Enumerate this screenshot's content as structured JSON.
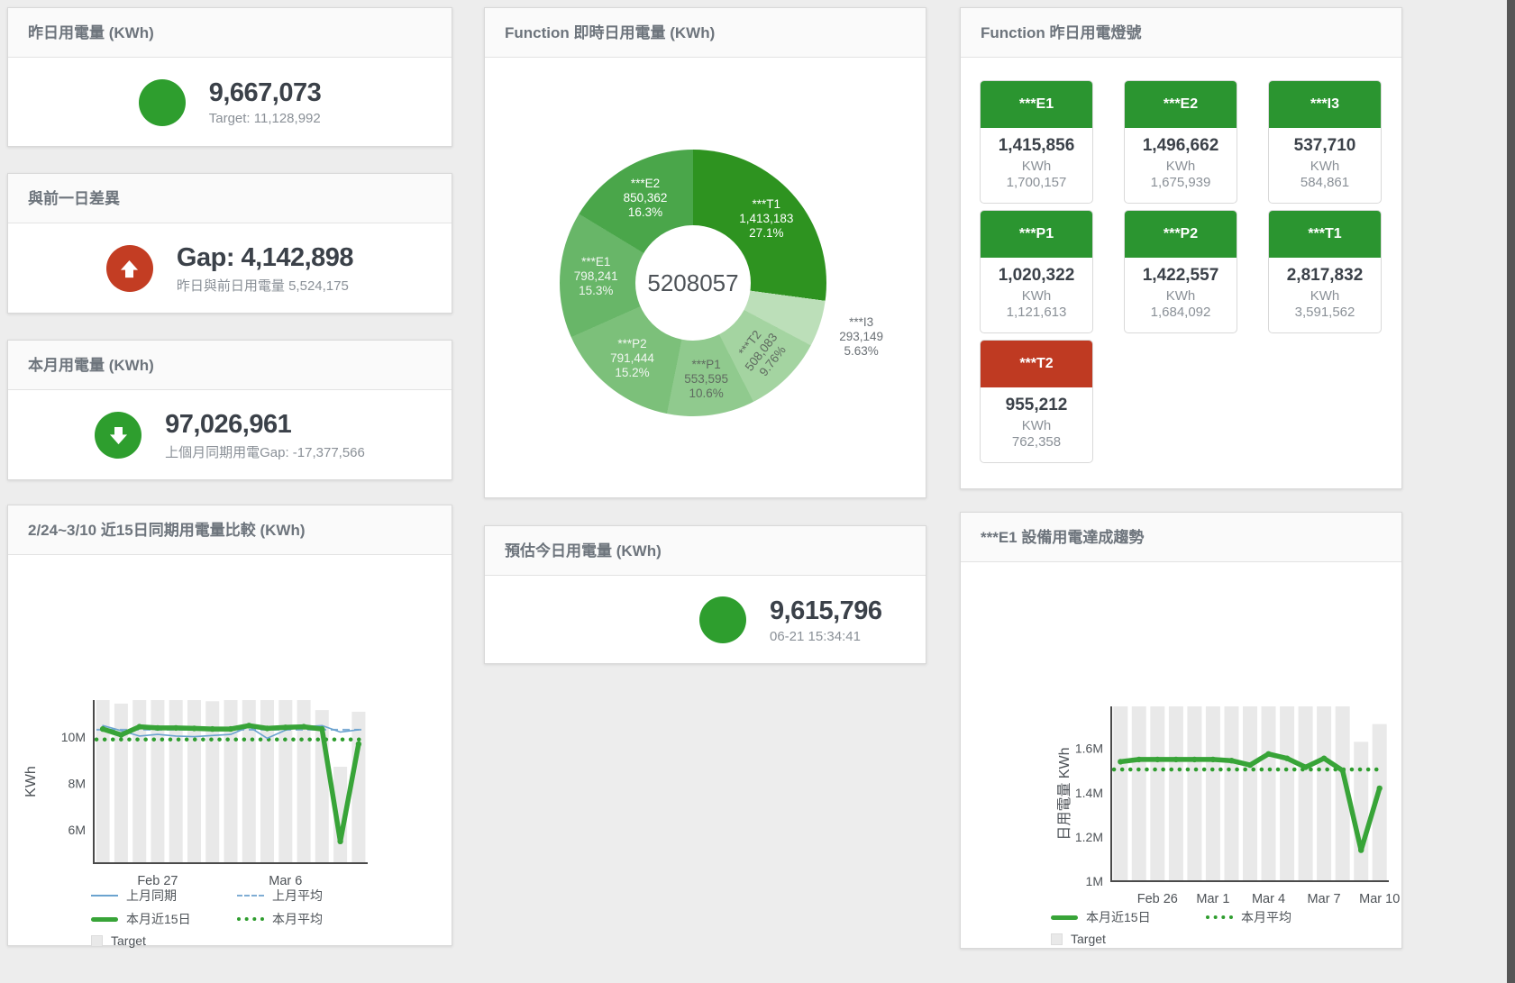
{
  "panels": {
    "yesterday": {
      "title": "昨日用電量 (KWh)",
      "value": "9,667,073",
      "subtitle": "Target: 11,128,992",
      "status_color": "#2e9e2e"
    },
    "gap": {
      "title": "與前一日差異",
      "value": "Gap: 4,142,898",
      "subtitle": "昨日與前日用電量 5,524,175",
      "status_color": "#c33d23",
      "arrow": "up"
    },
    "month": {
      "title": "本月用電量 (KWh)",
      "value": "97,026,961",
      "subtitle": "上個月同期用電Gap: -17,377,566",
      "status_color": "#2e9e2e",
      "arrow": "down"
    },
    "estimate": {
      "title": "預估今日用電量 (KWh)",
      "value": "9,615,796",
      "subtitle": "06-21 15:34:41",
      "status_color": "#2e9e2e"
    },
    "lights": {
      "title": "Function 昨日用電燈號",
      "status_colors": {
        "green": "#2b9530",
        "red": "#bf3a22"
      },
      "tiles": [
        {
          "name": "***E1",
          "value": "1,415,856",
          "unit": "KWh",
          "target": "1,700,157",
          "status": "green"
        },
        {
          "name": "***E2",
          "value": "1,496,662",
          "unit": "KWh",
          "target": "1,675,939",
          "status": "green"
        },
        {
          "name": "***I3",
          "value": "537,710",
          "unit": "KWh",
          "target": "584,861",
          "status": "green"
        },
        {
          "name": "***P1",
          "value": "1,020,322",
          "unit": "KWh",
          "target": "1,121,613",
          "status": "green"
        },
        {
          "name": "***P2",
          "value": "1,422,557",
          "unit": "KWh",
          "target": "1,684,092",
          "status": "green"
        },
        {
          "name": "***T1",
          "value": "2,817,832",
          "unit": "KWh",
          "target": "3,591,562",
          "status": "green"
        },
        {
          "name": "***T2",
          "value": "955,212",
          "unit": "KWh",
          "target": "762,358",
          "status": "red"
        }
      ]
    }
  },
  "chart_data": [
    {
      "type": "pie",
      "title": "Function 即時日用電量 (KWh)",
      "center_total": "5208057",
      "legend_position": "none",
      "slices": [
        {
          "name": "***T1",
          "value": 1413183,
          "display": "1,413,183",
          "pct": "27.1%",
          "color": "#2e9320",
          "label_color": "#ffffff",
          "label_pos": "inside"
        },
        {
          "name": "***I3",
          "value": 293149,
          "display": "293,149",
          "pct": "5.63%",
          "color": "#bcdfb9",
          "label_color": "#6a7075",
          "label_pos": "outside"
        },
        {
          "name": "***T2",
          "value": 508083,
          "display": "508,083",
          "pct": "9.76%",
          "color": "#a4d4a1",
          "label_color": "#5f6b60",
          "label_pos": "inside",
          "label_rotate": -52
        },
        {
          "name": "***P1",
          "value": 553595,
          "display": "553,595",
          "pct": "10.6%",
          "color": "#90ca8e",
          "label_color": "#5f6b60",
          "label_pos": "inside"
        },
        {
          "name": "***P2",
          "value": 791444,
          "display": "791,444",
          "pct": "15.2%",
          "color": "#7cc07a",
          "label_color": "#f2f7f2",
          "label_pos": "inside"
        },
        {
          "name": "***E1",
          "value": 798241,
          "display": "798,241",
          "pct": "15.3%",
          "color": "#68b668",
          "label_color": "#f2f7f2",
          "label_pos": "inside"
        },
        {
          "name": "***E2",
          "value": 850362,
          "display": "850,362",
          "pct": "16.3%",
          "color": "#4aa64a",
          "label_color": "#ffffff",
          "label_pos": "inside"
        }
      ]
    },
    {
      "type": "bar+line",
      "title": "2/24~3/10 近15日同期用電量比較 (KWh)",
      "ylabel": "KWh",
      "ylim": [
        4.56,
        11.6
      ],
      "yticks": [
        {
          "v": 6,
          "label": "6M"
        },
        {
          "v": 8,
          "label": "8M"
        },
        {
          "v": 10,
          "label": "10M"
        }
      ],
      "x_count": 15,
      "xticks": [
        {
          "i": 3,
          "label": "Feb 27"
        },
        {
          "i": 10,
          "label": "Mar 6"
        }
      ],
      "grid": false,
      "legend_position": "bottom",
      "target": [
        11.6,
        11.45,
        11.6,
        11.6,
        11.6,
        11.6,
        11.55,
        11.6,
        11.6,
        11.6,
        11.6,
        11.6,
        11.17,
        8.72,
        11.1
      ],
      "series": [
        {
          "name": "上月同期",
          "type": "line",
          "style": "solid",
          "color": "#6ba3cf",
          "width": 1.6,
          "values": [
            10.5,
            10.28,
            10.05,
            10.12,
            10.05,
            10.02,
            10.07,
            10.12,
            10.45,
            9.95,
            10.3,
            10.45,
            10.5,
            10.22,
            10.32
          ]
        },
        {
          "name": "上月平均",
          "type": "hline",
          "style": "dashed",
          "color": "#7fadd4",
          "width": 2,
          "value": 10.32
        },
        {
          "name": "本月近15日",
          "type": "line",
          "style": "solid",
          "color": "#38a438",
          "width": 5.5,
          "markers": true,
          "values": [
            10.35,
            10.1,
            10.45,
            10.4,
            10.4,
            10.38,
            10.35,
            10.35,
            10.5,
            10.38,
            10.42,
            10.45,
            10.35,
            5.5,
            9.7
          ]
        },
        {
          "name": "本月平均",
          "type": "hline",
          "style": "dotted",
          "color": "#2e9d2e",
          "width": 4.5,
          "value": 9.9
        },
        {
          "name": "Target",
          "type": "bar",
          "color": "#e9e9e9"
        }
      ]
    },
    {
      "type": "bar+line",
      "title": "***E1 設備用電達成趨勢",
      "ylabel": "日用電量 KWh",
      "ylim": [
        1.0,
        1.79
      ],
      "yticks": [
        {
          "v": 1,
          "label": "1M"
        },
        {
          "v": 1.2,
          "label": "1.2M"
        },
        {
          "v": 1.4,
          "label": "1.4M"
        },
        {
          "v": 1.6,
          "label": "1.6M"
        }
      ],
      "x_count": 15,
      "xticks": [
        {
          "i": 2,
          "label": "Feb 26"
        },
        {
          "i": 5,
          "label": "Mar 1"
        },
        {
          "i": 8,
          "label": "Mar 4"
        },
        {
          "i": 11,
          "label": "Mar 7"
        },
        {
          "i": 14,
          "label": "Mar 10"
        }
      ],
      "grid": false,
      "legend_position": "bottom",
      "target": [
        1.79,
        1.79,
        1.79,
        1.79,
        1.79,
        1.79,
        1.79,
        1.79,
        1.79,
        1.79,
        1.79,
        1.79,
        1.79,
        1.63,
        1.71
      ],
      "series": [
        {
          "name": "本月近15日",
          "type": "line",
          "style": "solid",
          "color": "#38a438",
          "width": 5.5,
          "markers": true,
          "values": [
            1.54,
            1.55,
            1.55,
            1.55,
            1.55,
            1.55,
            1.545,
            1.525,
            1.575,
            1.555,
            1.515,
            1.555,
            1.5,
            1.14,
            1.42
          ]
        },
        {
          "name": "本月平均",
          "type": "hline",
          "style": "dotted",
          "color": "#2e9d2e",
          "width": 4.5,
          "value": 1.505
        },
        {
          "name": "Target",
          "type": "bar",
          "color": "#e9e9e9"
        }
      ]
    }
  ]
}
